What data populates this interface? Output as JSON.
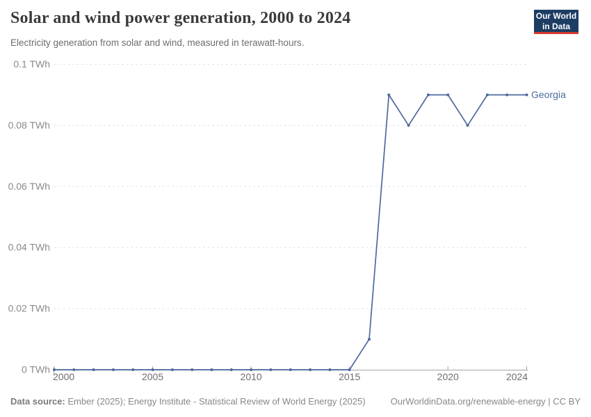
{
  "header": {
    "title": "Solar and wind power generation, 2000 to 2024",
    "subtitle": "Electricity generation from solar and wind, measured in terawatt-hours."
  },
  "logo": {
    "line1": "Our World",
    "line2": "in Data"
  },
  "chart_data": {
    "type": "line",
    "title": "Solar and wind power generation, 2000 to 2024",
    "unit": "TWh",
    "x": [
      2000,
      2001,
      2002,
      2003,
      2004,
      2005,
      2006,
      2007,
      2008,
      2009,
      2010,
      2011,
      2012,
      2013,
      2014,
      2015,
      2016,
      2017,
      2018,
      2019,
      2020,
      2021,
      2022,
      2023,
      2024
    ],
    "series": [
      {
        "name": "Georgia",
        "color": "#4C6A9C",
        "values": [
          0,
          0,
          0,
          0,
          0,
          0,
          0,
          0,
          0,
          0,
          0,
          0,
          0,
          0,
          0,
          0,
          0.01,
          0.09,
          0.08,
          0.09,
          0.09,
          0.08,
          0.09,
          0.09,
          0.09
        ]
      }
    ],
    "xlim": [
      2000,
      2024
    ],
    "ylim": [
      0,
      0.1
    ],
    "yticks": [
      {
        "value": 0,
        "label": "0 TWh"
      },
      {
        "value": 0.02,
        "label": "0.02 TWh"
      },
      {
        "value": 0.04,
        "label": "0.04 TWh"
      },
      {
        "value": 0.06,
        "label": "0.06 TWh"
      },
      {
        "value": 0.08,
        "label": "0.08 TWh"
      },
      {
        "value": 0.1,
        "label": "0.1 TWh"
      }
    ],
    "xticks": [
      {
        "value": 2000,
        "label": "2000"
      },
      {
        "value": 2005,
        "label": "2005"
      },
      {
        "value": 2010,
        "label": "2010"
      },
      {
        "value": 2015,
        "label": "2015"
      },
      {
        "value": 2020,
        "label": "2020"
      },
      {
        "value": 2024,
        "label": "2024"
      }
    ],
    "grid": "horizontal-dashed",
    "legend_position": "line-end-label"
  },
  "footer": {
    "source_label": "Data source:",
    "source_text": " Ember (2025); Energy Institute - Statistical Review of World Energy (2025)",
    "license_text": "OurWorldinData.org/renewable-energy | CC BY"
  },
  "colors": {
    "line": "#4C6A9C",
    "grid": "#dddddd",
    "axis": "#a5a5a5",
    "y_tick_label": "#8a8a8a",
    "x_tick_label": "#6e6e6e",
    "title": "#3a3a3a",
    "subtitle": "#6d6d6d",
    "footer": "#878787",
    "logo_bg": "#1d3d63",
    "logo_accent": "#d6382f"
  }
}
